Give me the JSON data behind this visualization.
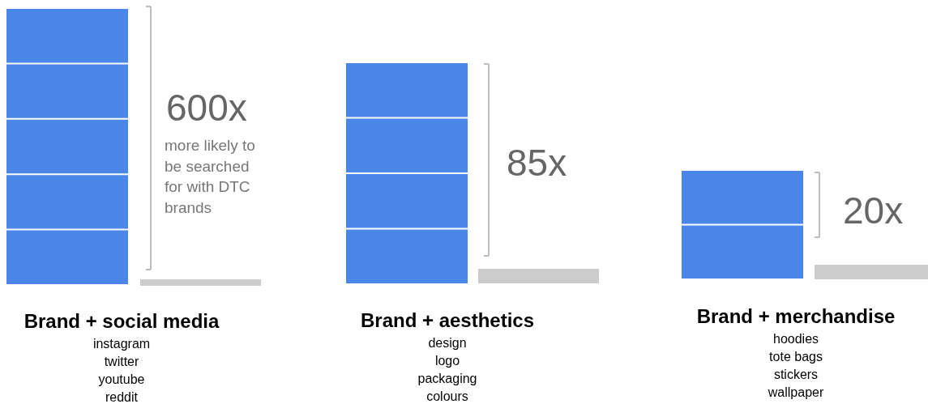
{
  "chart_data": {
    "type": "other",
    "categories": [
      "Brand + social media",
      "Brand + aesthetics",
      "Brand + merchandise"
    ],
    "values": [
      600,
      85,
      20
    ],
    "value_labels": [
      "600x",
      "85x",
      "20x"
    ],
    "annotations": [
      "more likely to be searched for with DTC brands",
      "instagram\ntwitter\nyoutube\nreddit",
      "design\nlogo\npackaging\ncolours",
      "hoodies\ntote bags\nstickers\nwallpaper"
    ]
  }
}
